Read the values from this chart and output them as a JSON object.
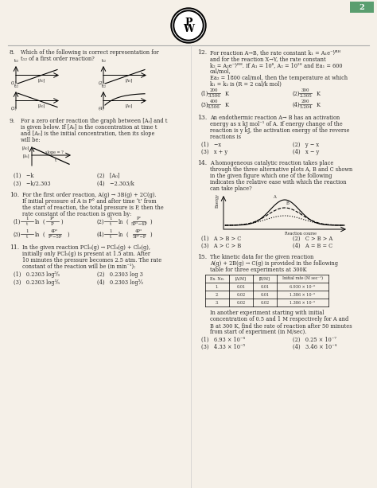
{
  "page_num": "2",
  "bg_color": "#f5f0e8",
  "text_color": "#2c2c2c",
  "logo_text": "PW",
  "q8": {
    "num": "8.",
    "text": "Which of the following is correct representation for\nt₁₂ of a first order reaction?",
    "options": [
      {
        "id": "(1)",
        "type": "linear_up"
      },
      {
        "id": "(2)",
        "type": "linear_up_offset"
      },
      {
        "id": "(3)",
        "type": "linear_down"
      },
      {
        "id": "(4)",
        "type": "exp_down"
      }
    ]
  },
  "q9": {
    "num": "9.",
    "text": "For a zero order reaction the graph between [Aₜ] and t\nis given below. If [Aₜ] is the concentration at time t\nand [A₀] is the initial concentration, then its slope\nwill be:",
    "options_text": [
      {
        "id": "(1)",
        "val": "−k"
      },
      {
        "id": "(2)",
        "val": "[A₀]"
      },
      {
        "id": "(3)",
        "val": "−k/2.303"
      },
      {
        "id": "(4)",
        "val": "−2.303/k"
      }
    ]
  },
  "q10": {
    "num": "10.",
    "text": "For the first order reaction, A(g) → 3B(g) + 2C(g).\nIf initial pressure of A is P° and after time ‘t’ from\nthe start of reaction, the total pressure is P, then the\nrate constant of the reaction is given by:",
    "options_text": [
      {
        "id": "(1)",
        "val": "1/t ln(P°/P)"
      },
      {
        "id": "(2)",
        "val": "1/t ln(P°/(5P°−4P))"
      },
      {
        "id": "(3)",
        "val": "1/t ln(4P°/(P°−5P))"
      },
      {
        "id": "(4)",
        "val": "1/t ln(4P°/(5P°−P))"
      }
    ]
  },
  "q11": {
    "num": "11.",
    "text": "In the given reaction PCl₅(g) → PCl₃(g) + Cl₂(g),\ninitially only PCl₅(g) is present at 1.5 atm. After\n10 minutes the pressure becomes 2.5 atm. The rate\nconstant of the reaction will be (in min⁻¹):",
    "options_text": [
      {
        "id": "(1)",
        "val": "0.2303 log 5/3"
      },
      {
        "id": "(2)",
        "val": "0.2303 log 3"
      },
      {
        "id": "(3)",
        "val": "0.2303 log 3/5"
      },
      {
        "id": "(4)",
        "val": "0.2303 log 5/2"
      }
    ]
  },
  "q12": {
    "num": "12.",
    "text": "For reaction A→B, the rate constant k₁ = A₁e^⁻ᴵ⁄ᴿᴴ\nand for the reaction X→Y, the rate constant\nk₂ = A₂e^⁻ᴵ⁄ᴿᴴ. If A₁ = 10⁸, A₂ = 10²° and Ea₁ = 600\ncal/mol,\nEa₂ = 1800 cal/mol, then the temperature at which\nk₁ = k₂ is (R = 2 cal/k mol)",
    "options_text": [
      {
        "id": "(1)",
        "val": "200/3.506 K"
      },
      {
        "id": "(2)",
        "val": "300/2.305 K"
      },
      {
        "id": "(3)",
        "val": "400/6.506 K"
      },
      {
        "id": "(4)",
        "val": "200/5.204 K"
      }
    ]
  },
  "q13": {
    "num": "13.",
    "text": "An endothermic reaction A→ B has an activation\nenergy as x kJ mol⁻¹ of A. If energy change of the\nreaction is y kJ, the activation energy of the reverse\nreactions is",
    "options_text": [
      {
        "id": "(1)",
        "val": "−x"
      },
      {
        "id": "(2)",
        "val": "y − x"
      },
      {
        "id": "(3)",
        "val": "x + y"
      },
      {
        "id": "(4)",
        "val": "x − y"
      }
    ]
  },
  "q14": {
    "num": "14.",
    "text": "A homogeneous catalytic reaction takes place\nthrough the three alternative plots A, B and C shown\nin the given figure which one of the following\nindicates the relative ease with which the reaction\ncan take place?",
    "options_text": [
      {
        "id": "(1)",
        "val": "A > B > C"
      },
      {
        "id": "(2)",
        "val": "C > B > A"
      },
      {
        "id": "(3)",
        "val": "A > C > B"
      },
      {
        "id": "(4)",
        "val": "A = B = C"
      }
    ]
  },
  "q15": {
    "num": "15.",
    "text": "The kinetic data for the given reaction\nA(g) + 2B(g) → C(g) is provided in the following\ntable for three experiments at 300K",
    "table_headers": [
      "Ex. No.",
      "[A/M]",
      "[B/M]",
      "Initial rate (M sec⁻¹)"
    ],
    "table_rows": [
      [
        "1.",
        "0.01",
        "0.01",
        "6.930 × 10⁻⁶"
      ],
      [
        "2.",
        "0.02",
        "0.01",
        "1.386 × 10⁻⁵"
      ],
      [
        "3.",
        "0.02",
        "0.02",
        "1.386 × 10⁻⁵"
      ]
    ],
    "footer_text": "In another experiment starting with initial\nconcentration of 0.5 and 1 M respectively for A and\nB at 300 K, find the rate of reaction after 50 minutes\nfrom start of experiment (in M/sec).",
    "options_text": [
      {
        "id": "(1)",
        "val": "6.93 × 10⁻⁴"
      },
      {
        "id": "(2)",
        "val": "0.25 × 10⁻⁷"
      },
      {
        "id": "(3)",
        "val": "4.33 × 10⁻⁵"
      },
      {
        "id": "(4)",
        "val": "3.46 × 10⁻⁴"
      }
    ]
  }
}
